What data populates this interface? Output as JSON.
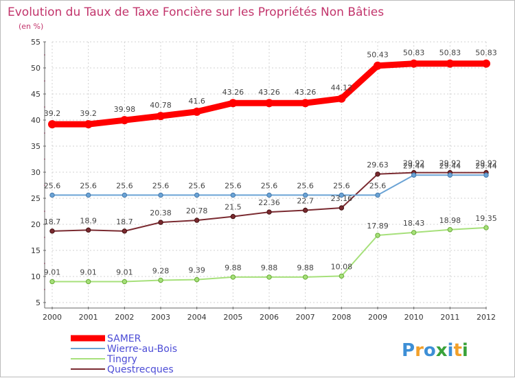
{
  "chart_data": {
    "type": "line",
    "title": "Evolution du Taux de Taxe Foncière sur les Propriétés Non Bâties",
    "subtitle": "(en %)",
    "x": [
      "2000",
      "2001",
      "2002",
      "2003",
      "2004",
      "2005",
      "2006",
      "2007",
      "2008",
      "2009",
      "2010",
      "2011",
      "2012"
    ],
    "ylim": [
      5,
      55
    ],
    "yticks": [
      "5",
      "10",
      "15",
      "20",
      "25",
      "30",
      "35",
      "40",
      "45",
      "50",
      "55"
    ],
    "grid": true,
    "legend_position": "bottom-left",
    "series": [
      {
        "name": "SAMER",
        "color": "#ff0000",
        "values": [
          39.2,
          39.2,
          39.98,
          40.78,
          41.6,
          43.26,
          43.26,
          43.26,
          44.12,
          50.43,
          50.83,
          50.83,
          50.83
        ],
        "labels": [
          "39.2",
          "39.2",
          "39.98",
          "40.78",
          "41.6",
          "43.26",
          "43.26",
          "43.26",
          "44.12",
          "50.43",
          "50.83",
          "50.83",
          "50.83"
        ]
      },
      {
        "name": "Wierre-au-Bois",
        "color": "#6aa3d5",
        "values": [
          25.6,
          25.6,
          25.6,
          25.6,
          25.6,
          25.6,
          25.6,
          25.6,
          25.6,
          25.6,
          29.44,
          29.44,
          29.44
        ],
        "labels": [
          "25.6",
          "25.6",
          "25.6",
          "25.6",
          "25.6",
          "25.6",
          "25.6",
          "25.6",
          "25.6",
          "25.6",
          "29.44",
          "29.44",
          "29.44"
        ]
      },
      {
        "name": "Tingry",
        "color": "#a6e07a",
        "values": [
          9.01,
          9.01,
          9.01,
          9.28,
          9.39,
          9.88,
          9.88,
          9.88,
          10.08,
          17.89,
          18.43,
          18.98,
          19.35
        ],
        "labels": [
          "9.01",
          "9.01",
          "9.01",
          "9.28",
          "9.39",
          "9.88",
          "9.88",
          "9.88",
          "10.08",
          "17.89",
          "18.43",
          "18.98",
          "19.35"
        ]
      },
      {
        "name": "Questrecques",
        "color": "#7a2a30",
        "values": [
          18.7,
          18.9,
          18.7,
          20.38,
          20.78,
          21.5,
          22.36,
          22.7,
          23.16,
          29.63,
          29.92,
          29.92,
          29.92
        ],
        "labels": [
          "18.7",
          "18.9",
          "18.7",
          "20.38",
          "20.78",
          "21.5",
          "22.36",
          "22.7",
          "23.16",
          "29.63",
          "29.92",
          "29.92",
          "29.92"
        ]
      }
    ]
  },
  "legend": {
    "text_color": "#4c4cd6"
  },
  "logo": {
    "text": "Proxiti"
  }
}
